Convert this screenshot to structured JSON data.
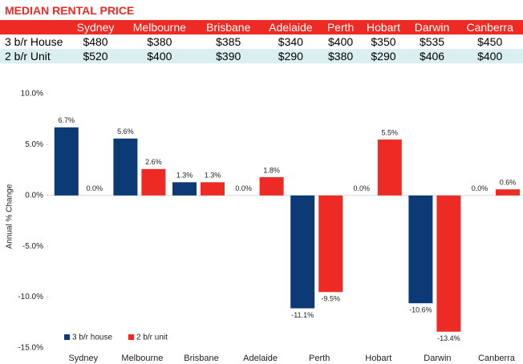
{
  "table": {
    "title": "MEDIAN RENTAL PRICE",
    "columns": [
      "Sydney",
      "Melbourne",
      "Brisbane",
      "Adelaide",
      "Perth",
      "Hobart",
      "Darwin",
      "Canberra"
    ],
    "rows": [
      {
        "label": "3 b/r House",
        "cells": [
          "$480",
          "$380",
          "$385",
          "$340",
          "$400",
          "$350",
          "$535",
          "$450"
        ]
      },
      {
        "label": "2 b/r Unit",
        "cells": [
          "$520",
          "$400",
          "$390",
          "$290",
          "$380",
          "$290",
          "$406",
          "$400"
        ]
      }
    ]
  },
  "chart_data": {
    "type": "bar",
    "y_label": "Annual % Change",
    "categories": [
      "Sydney",
      "Melbourne",
      "Brisbane",
      "Adelaide",
      "Perth",
      "Hobart",
      "Darwin",
      "Canberra"
    ],
    "series": [
      {
        "name": "3 b/r house",
        "color": "#0b3a75",
        "values": [
          6.7,
          5.6,
          1.3,
          0.0,
          -11.1,
          0.0,
          -10.6,
          0.0
        ],
        "value_labels": [
          "6.7%",
          "5.6%",
          "1.3%",
          "0.0%",
          "-11.1%",
          "0.0%",
          "-10.6%",
          "0.0%"
        ]
      },
      {
        "name": "2 b/r unit",
        "color": "#ee2a24",
        "values": [
          0.0,
          2.6,
          1.3,
          1.8,
          -9.5,
          5.5,
          -13.4,
          0.6
        ],
        "value_labels": [
          "0.0%",
          "2.6%",
          "1.3%",
          "1.8%",
          "-9.5%",
          "5.5%",
          "-13.4%",
          "0.6%"
        ]
      }
    ],
    "ylim": [
      -15,
      10
    ],
    "yticks": [
      {
        "value": -15,
        "label": "-15.0%"
      },
      {
        "value": -10,
        "label": "-10.0%"
      },
      {
        "value": -5,
        "label": "-5.0%"
      },
      {
        "value": 0,
        "label": "0.0%"
      },
      {
        "value": 5,
        "label": "5.0%"
      },
      {
        "value": 10,
        "label": "10.0%"
      }
    ],
    "legend": "lower-left"
  }
}
